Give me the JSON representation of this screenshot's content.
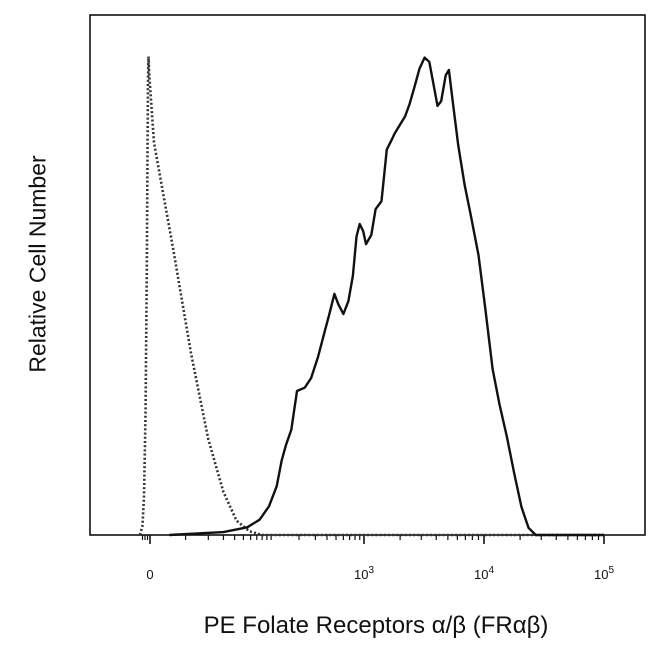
{
  "chart_data": {
    "type": "area",
    "xlabel": "PE Folate Receptors α/β (FRαβ)",
    "ylabel": "Relative Cell Number",
    "x_scale": "biexponential",
    "x_ticks": [
      {
        "value": 0,
        "label": "0",
        "exp": ""
      },
      {
        "value": 1000,
        "label": "10",
        "exp": "3"
      },
      {
        "value": 10000,
        "label": "10",
        "exp": "4"
      },
      {
        "value": 100000,
        "label": "10",
        "exp": "5"
      }
    ],
    "ylim": [
      0,
      100
    ],
    "grid": false,
    "legend": "none",
    "series": [
      {
        "style": "dotted",
        "color": "#333333",
        "points": [
          [
            -40,
            0
          ],
          [
            -30,
            2
          ],
          [
            -24,
            8
          ],
          [
            -18,
            25
          ],
          [
            -13,
            55
          ],
          [
            -10,
            80
          ],
          [
            -8,
            95
          ],
          [
            -6,
            100
          ],
          [
            -3,
            96
          ],
          [
            1,
            82
          ],
          [
            6,
            60
          ],
          [
            12,
            38
          ],
          [
            20,
            20
          ],
          [
            30,
            9
          ],
          [
            42,
            3
          ],
          [
            58,
            0.8
          ],
          [
            80,
            0
          ],
          [
            100000,
            0
          ]
        ]
      },
      {
        "style": "solid",
        "color": "#111111",
        "points": [
          [
            5,
            0
          ],
          [
            30,
            0.6
          ],
          [
            55,
            1.6
          ],
          [
            75,
            3.2
          ],
          [
            95,
            6.0
          ],
          [
            115,
            10.2
          ],
          [
            130,
            15.6
          ],
          [
            145,
            18.9
          ],
          [
            165,
            22
          ],
          [
            190,
            30.1
          ],
          [
            230,
            30.8
          ],
          [
            270,
            32.8
          ],
          [
            320,
            37.2
          ],
          [
            380,
            42.7
          ],
          [
            420,
            45.9
          ],
          [
            480,
            50.4
          ],
          [
            530,
            48.2
          ],
          [
            600,
            46.2
          ],
          [
            680,
            48.9
          ],
          [
            760,
            54.2
          ],
          [
            830,
            62.4
          ],
          [
            900,
            65.0
          ],
          [
            980,
            63.5
          ],
          [
            1040,
            60.8
          ],
          [
            1150,
            62.7
          ],
          [
            1250,
            68.1
          ],
          [
            1400,
            69.8
          ],
          [
            1550,
            80.6
          ],
          [
            1700,
            82.6
          ],
          [
            1800,
            83.9
          ],
          [
            2000,
            85.8
          ],
          [
            2200,
            87.5
          ],
          [
            2400,
            90.1
          ],
          [
            2650,
            93.9
          ],
          [
            2900,
            97.5
          ],
          [
            3200,
            99.8
          ],
          [
            3500,
            98.9
          ],
          [
            3800,
            94.1
          ],
          [
            4100,
            89.7
          ],
          [
            4400,
            90.7
          ],
          [
            4800,
            96.1
          ],
          [
            5100,
            97.2
          ],
          [
            5500,
            90.5
          ],
          [
            6100,
            81.5
          ],
          [
            6900,
            73.1
          ],
          [
            7800,
            66.5
          ],
          [
            9000,
            58.5
          ],
          [
            10300,
            47.0
          ],
          [
            11800,
            34.7
          ],
          [
            13500,
            27.2
          ],
          [
            15500,
            20.6
          ],
          [
            17800,
            13.0
          ],
          [
            20500,
            5.9
          ],
          [
            23500,
            1.5
          ],
          [
            27000,
            0
          ],
          [
            100000,
            0
          ]
        ]
      }
    ]
  }
}
